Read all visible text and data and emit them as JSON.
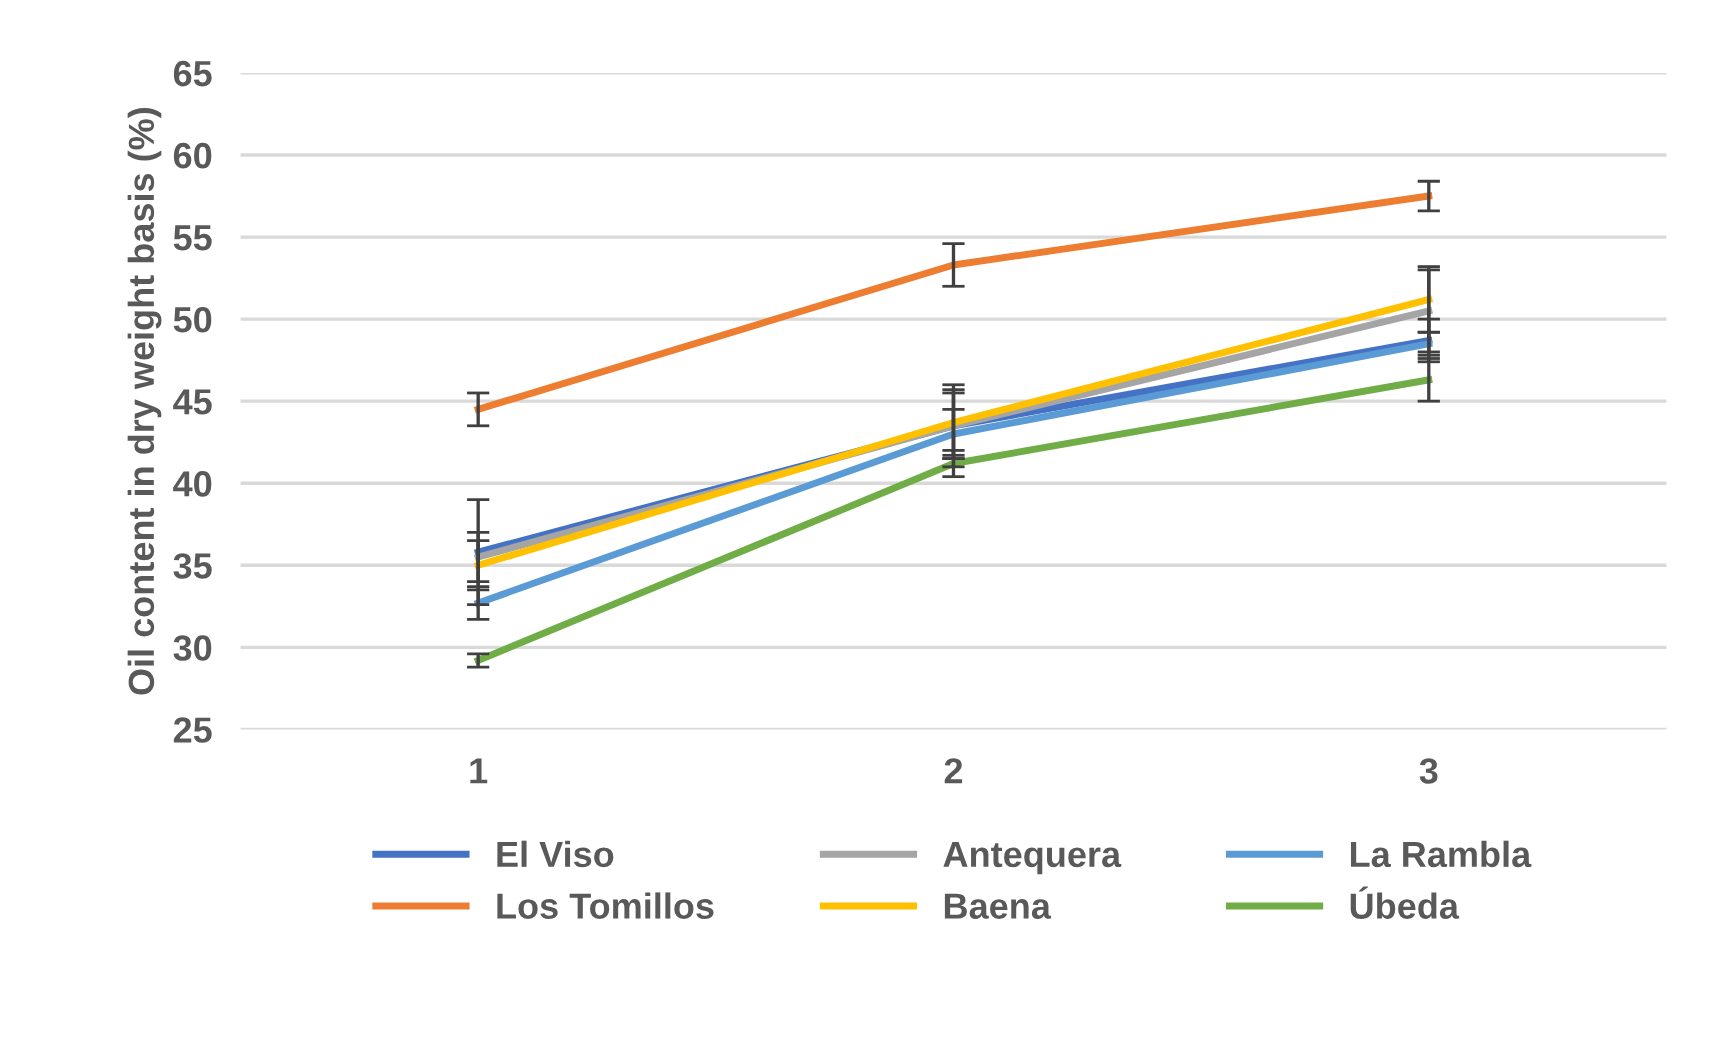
{
  "chart_data": {
    "type": "line",
    "ylabel": "Oil content in dry weight basis (%)",
    "categories": [
      "1",
      "2",
      "3"
    ],
    "ylim": [
      25,
      65
    ],
    "yticks": [
      25,
      30,
      35,
      40,
      45,
      50,
      55,
      60,
      65
    ],
    "grid": "y",
    "legend": "bottom",
    "marker": "none",
    "line_style": "solid",
    "series": [
      {
        "name": "El Viso",
        "color": "#4472c4",
        "values": [
          35.8,
          43.5,
          48.7
        ],
        "errors": [
          3.2,
          2.5,
          1.3
        ]
      },
      {
        "name": "Los Tomillos",
        "color": "#ed7d31",
        "values": [
          44.5,
          53.3,
          57.5
        ],
        "errors": [
          1.0,
          1.3,
          0.9
        ]
      },
      {
        "name": "Antequera",
        "color": "#a5a5a5",
        "values": [
          35.5,
          43.5,
          50.5
        ],
        "errors": [
          1.5,
          2.0,
          2.5
        ]
      },
      {
        "name": "Baena",
        "color": "#ffc000",
        "values": [
          35.0,
          43.7,
          51.2
        ],
        "errors": [
          1.5,
          2.0,
          2.0
        ]
      },
      {
        "name": "La Rambla",
        "color": "#5b9bd5",
        "values": [
          32.7,
          43.0,
          48.5
        ],
        "errors": [
          1.0,
          1.5,
          0.7
        ]
      },
      {
        "name": "Úbeda",
        "color": "#70ad47",
        "values": [
          29.2,
          41.2,
          46.3
        ],
        "errors": [
          0.4,
          0.8,
          1.3
        ]
      }
    ]
  }
}
